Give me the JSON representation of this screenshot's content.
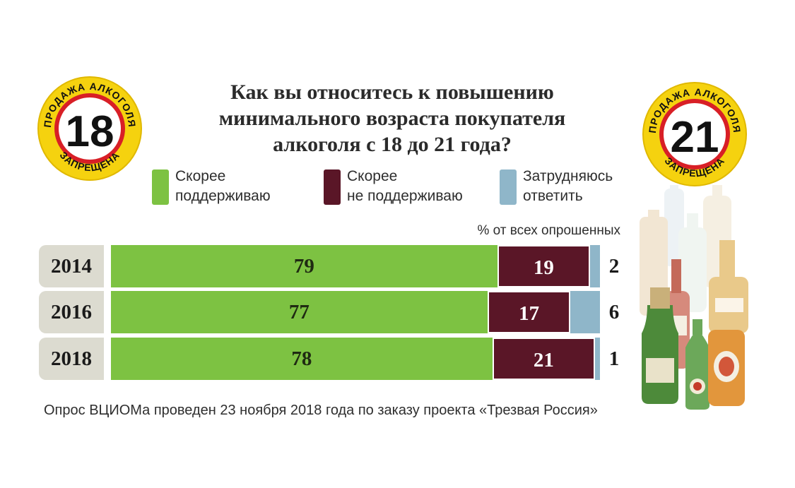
{
  "title": "Как вы относитесь к повышению минимального возраста покупателя алкоголя с 18 до 21 года?",
  "legend": [
    {
      "label": "Скорее\nподдерживаю",
      "color": "#7dc242"
    },
    {
      "label": "Скорее\nне поддерживаю",
      "color": "#5a1627"
    },
    {
      "label": "Затрудняюсь\nответить",
      "color": "#8fb6c9"
    }
  ],
  "unit_note": "% от всех опрошенных",
  "badges": {
    "left": {
      "number": "18",
      "top_text": "ПРОДАЖА АЛКОГОЛЯ",
      "bottom_text": "ЗАПРЕЩЕНА"
    },
    "right": {
      "number": "21",
      "top_text": "ПРОДАЖА АЛКОГОЛЯ",
      "bottom_text": "ЗАПРЕЩЕНА"
    }
  },
  "source_note": "Опрос ВЦИОМа проведен 23 ноября 2018 года по заказу проекта «Трезвая Россия»",
  "chart_data": {
    "type": "bar",
    "stacked": true,
    "orientation": "horizontal",
    "title": "Как вы относитесь к повышению минимального возраста покупателя алкоголя с 18 до 21 года?",
    "categories": [
      "2014",
      "2016",
      "2018"
    ],
    "series": [
      {
        "name": "Скорее поддерживаю",
        "values": [
          79,
          77,
          78
        ],
        "color": "#7dc242"
      },
      {
        "name": "Скорее не поддерживаю",
        "values": [
          19,
          17,
          21
        ],
        "color": "#5a1627"
      },
      {
        "name": "Затрудняюсь ответить",
        "values": [
          2,
          6,
          1
        ],
        "color": "#8fb6c9"
      }
    ],
    "unit": "% от всех опрошенных",
    "xlim": [
      0,
      100
    ],
    "grid": false,
    "legend_position": "top"
  }
}
